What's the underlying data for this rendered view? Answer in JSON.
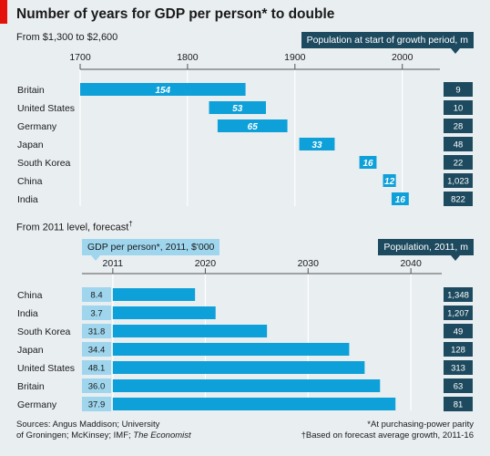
{
  "title": "Number of years for GDP per person* to double",
  "chart_data": [
    {
      "type": "bar",
      "subtitle": "From $1,300 to $2,600",
      "x_ticks": [
        "1700",
        "1800",
        "1900",
        "2000"
      ],
      "xlim": [
        1700,
        2035
      ],
      "pill_label": "Population at start of growth period, m",
      "bars": [
        {
          "country": "Britain",
          "start": 1700,
          "end": 1854,
          "years": "154",
          "population": "9"
        },
        {
          "country": "United States",
          "start": 1820,
          "end": 1873,
          "years": "53",
          "population": "10"
        },
        {
          "country": "Germany",
          "start": 1828,
          "end": 1893,
          "years": "65",
          "population": "28"
        },
        {
          "country": "Japan",
          "start": 1904,
          "end": 1937,
          "years": "33",
          "population": "48"
        },
        {
          "country": "South Korea",
          "start": 1960,
          "end": 1976,
          "years": "16",
          "population": "22"
        },
        {
          "country": "China",
          "start": 1982,
          "end": 1994,
          "years": "12",
          "population": "1,023"
        },
        {
          "country": "India",
          "start": 1990,
          "end": 2006,
          "years": "16",
          "population": "822"
        }
      ]
    },
    {
      "type": "bar",
      "subtitle": "From 2011 level, forecast",
      "subtitle_mark": "†",
      "x_ticks": [
        "2011",
        "2020",
        "2030",
        "2040"
      ],
      "xlim": [
        2008,
        2043
      ],
      "left_pill_label": "GDP per person*, 2011, $'000",
      "right_pill_label": "Population, 2011, m",
      "bars": [
        {
          "country": "China",
          "gdp": "8.4",
          "end": 2019,
          "population": "1,348"
        },
        {
          "country": "India",
          "gdp": "3.7",
          "end": 2021,
          "population": "1,207"
        },
        {
          "country": "South Korea",
          "gdp": "31.8",
          "end": 2026,
          "population": "49"
        },
        {
          "country": "Japan",
          "gdp": "34.4",
          "end": 2034,
          "population": "128"
        },
        {
          "country": "United States",
          "gdp": "48.1",
          "end": 2035.5,
          "population": "313"
        },
        {
          "country": "Britain",
          "gdp": "36.0",
          "end": 2037,
          "population": "63"
        },
        {
          "country": "Germany",
          "gdp": "37.9",
          "end": 2038.5,
          "population": "81"
        }
      ]
    }
  ],
  "footer": {
    "sources_line1": "Sources: Angus Maddison; University",
    "sources_line2_a": "of Groningen; McKinsey; IMF; ",
    "sources_line2_b": "The Economist",
    "note1": "*At purchasing-power parity",
    "note2": "†Based on forecast average growth, 2011-16"
  },
  "colors": {
    "bar": "#0ea0d8",
    "dark_box": "#1d4a5f",
    "light_box": "#9fd6ee",
    "grid": "#ffffff",
    "background": "#e9eef1",
    "brand_red": "#e3120b"
  }
}
